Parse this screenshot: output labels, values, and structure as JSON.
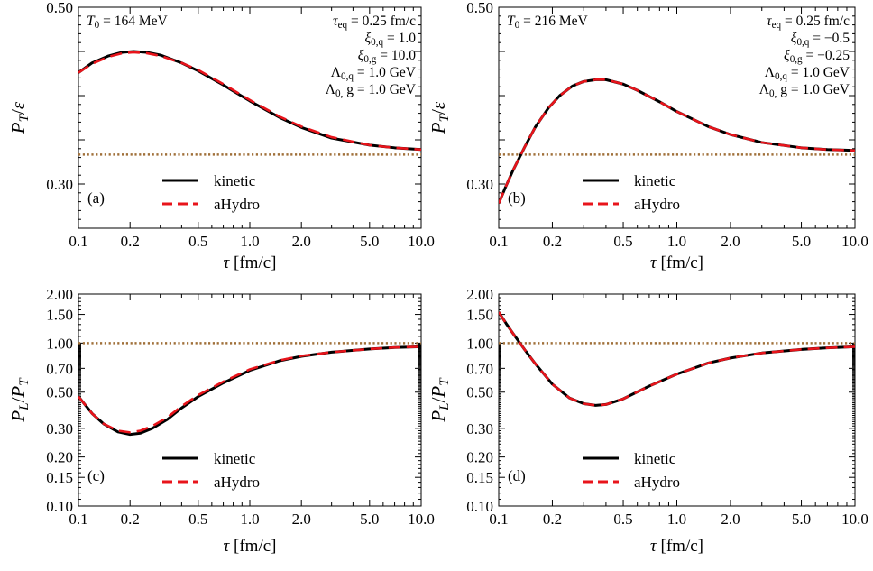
{
  "chart_data": [
    {
      "type": "line",
      "panel_label": "(a)",
      "x_scale": "log",
      "y_scale": "linear",
      "xlim": [
        0.1,
        10.0
      ],
      "ylim": [
        0.25,
        0.5
      ],
      "xticks": [
        "0.1",
        "0.2",
        "0.5",
        "1.0",
        "2.0",
        "5.0",
        "10.0"
      ],
      "yticks": [
        "0.30",
        "0.50"
      ],
      "xlabel": "τ [fm/c]",
      "ylabel": "P_T/ε",
      "info_left": "T_0 = 164 MeV",
      "info_right": [
        "τ_eq = 0.25 fm/c",
        "ξ_0,q = 1.0",
        "ξ_0,g = 10.0",
        "Λ_0,q = 1.0 GeV",
        "Λ_0, g = 1.0 GeV"
      ],
      "reference_line": {
        "y": 0.3333,
        "color": "#A0703A",
        "style": "dotted"
      },
      "series": [
        {
          "name": "kinetic",
          "color": "#000000",
          "style": "solid",
          "x": [
            0.1,
            0.12,
            0.15,
            0.18,
            0.21,
            0.25,
            0.3,
            0.4,
            0.5,
            0.7,
            1.0,
            1.5,
            2.0,
            3.0,
            5.0,
            7.0,
            10.0
          ],
          "y": [
            0.426,
            0.437,
            0.445,
            0.449,
            0.45,
            0.449,
            0.446,
            0.437,
            0.428,
            0.412,
            0.394,
            0.375,
            0.364,
            0.352,
            0.344,
            0.341,
            0.339
          ]
        },
        {
          "name": "aHydro",
          "color": "#E8141B",
          "style": "dashed",
          "x": [
            0.1,
            0.12,
            0.15,
            0.18,
            0.21,
            0.25,
            0.3,
            0.4,
            0.5,
            0.7,
            1.0,
            1.5,
            2.0,
            3.0,
            5.0,
            7.0,
            10.0
          ],
          "y": [
            0.426,
            0.436,
            0.444,
            0.448,
            0.449,
            0.448,
            0.445,
            0.437,
            0.429,
            0.413,
            0.395,
            0.376,
            0.365,
            0.353,
            0.344,
            0.341,
            0.339
          ]
        }
      ],
      "legend": {
        "placement": "bottom-center",
        "entries": [
          "kinetic",
          "aHydro"
        ]
      }
    },
    {
      "type": "line",
      "panel_label": "(b)",
      "x_scale": "log",
      "y_scale": "linear",
      "xlim": [
        0.1,
        10.0
      ],
      "ylim": [
        0.25,
        0.5
      ],
      "xticks": [
        "0.1",
        "0.2",
        "0.5",
        "1.0",
        "2.0",
        "5.0",
        "10.0"
      ],
      "yticks": [
        "0.30",
        "0.50"
      ],
      "xlabel": "τ [fm/c]",
      "ylabel": "P_T/ε",
      "info_left": "T_0 = 216 MeV",
      "info_right": [
        "τ_eq = 0.25 fm/c",
        "ξ_0,q = −0.5",
        "ξ_0,g = −0.25",
        "Λ_0,q = 1.0 GeV",
        "Λ_0, g = 1.0 GeV"
      ],
      "reference_line": {
        "y": 0.3333,
        "color": "#A0703A",
        "style": "dotted"
      },
      "series": [
        {
          "name": "kinetic",
          "color": "#000000",
          "style": "solid",
          "x": [
            0.1,
            0.11,
            0.12,
            0.14,
            0.16,
            0.19,
            0.22,
            0.26,
            0.3,
            0.35,
            0.4,
            0.5,
            0.6,
            0.8,
            1.0,
            1.5,
            2.0,
            3.0,
            5.0,
            7.0,
            10.0
          ],
          "y": [
            0.278,
            0.298,
            0.315,
            0.342,
            0.364,
            0.386,
            0.4,
            0.411,
            0.416,
            0.418,
            0.418,
            0.413,
            0.406,
            0.393,
            0.382,
            0.365,
            0.356,
            0.347,
            0.341,
            0.339,
            0.338
          ]
        },
        {
          "name": "aHydro",
          "color": "#E8141B",
          "style": "dashed",
          "x": [
            0.1,
            0.11,
            0.12,
            0.14,
            0.16,
            0.19,
            0.22,
            0.26,
            0.3,
            0.35,
            0.4,
            0.5,
            0.6,
            0.8,
            1.0,
            1.5,
            2.0,
            3.0,
            5.0,
            7.0,
            10.0
          ],
          "y": [
            0.278,
            0.298,
            0.315,
            0.342,
            0.364,
            0.386,
            0.4,
            0.411,
            0.416,
            0.418,
            0.418,
            0.413,
            0.406,
            0.393,
            0.382,
            0.365,
            0.356,
            0.347,
            0.341,
            0.339,
            0.338
          ]
        }
      ],
      "legend": {
        "placement": "bottom-center",
        "entries": [
          "kinetic",
          "aHydro"
        ]
      }
    },
    {
      "type": "line",
      "panel_label": "(c)",
      "x_scale": "log",
      "y_scale": "log",
      "xlim": [
        0.1,
        10.0
      ],
      "ylim": [
        0.1,
        2.0
      ],
      "xticks": [
        "0.1",
        "0.2",
        "0.5",
        "1.0",
        "2.0",
        "5.0",
        "10.0"
      ],
      "yticks": [
        "0.10",
        "0.15",
        "0.20",
        "0.30",
        "0.50",
        "0.70",
        "1.00",
        "1.50",
        "2.00"
      ],
      "xlabel": "τ [fm/c]",
      "ylabel": "P_L/P_T",
      "reference_line": {
        "y": 1.0,
        "color": "#A0703A",
        "style": "dotted"
      },
      "series": [
        {
          "name": "kinetic",
          "color": "#000000",
          "style": "solid",
          "x": [
            0.1,
            0.12,
            0.14,
            0.17,
            0.2,
            0.23,
            0.27,
            0.33,
            0.4,
            0.5,
            0.7,
            1.0,
            1.5,
            2.0,
            3.0,
            5.0,
            7.0,
            10.0
          ],
          "y": [
            0.47,
            0.37,
            0.32,
            0.285,
            0.275,
            0.28,
            0.3,
            0.34,
            0.4,
            0.47,
            0.57,
            0.68,
            0.78,
            0.83,
            0.88,
            0.92,
            0.94,
            0.95
          ]
        },
        {
          "name": "aHydro",
          "color": "#E8141B",
          "style": "dashed",
          "x": [
            0.1,
            0.12,
            0.14,
            0.17,
            0.2,
            0.23,
            0.27,
            0.33,
            0.4,
            0.5,
            0.7,
            1.0,
            1.5,
            2.0,
            3.0,
            5.0,
            7.0,
            10.0
          ],
          "y": [
            0.47,
            0.37,
            0.32,
            0.29,
            0.283,
            0.29,
            0.31,
            0.35,
            0.41,
            0.48,
            0.58,
            0.69,
            0.785,
            0.835,
            0.88,
            0.92,
            0.94,
            0.95
          ]
        }
      ],
      "legend": {
        "placement": "bottom-center",
        "entries": [
          "kinetic",
          "aHydro"
        ]
      }
    },
    {
      "type": "line",
      "panel_label": "(d)",
      "x_scale": "log",
      "y_scale": "log",
      "xlim": [
        0.1,
        10.0
      ],
      "ylim": [
        0.1,
        2.0
      ],
      "xticks": [
        "0.1",
        "0.2",
        "0.5",
        "1.0",
        "2.0",
        "5.0",
        "10.0"
      ],
      "yticks": [
        "0.10",
        "0.15",
        "0.20",
        "0.30",
        "0.50",
        "0.70",
        "1.00",
        "1.50",
        "2.00"
      ],
      "xlabel": "τ [fm/c]",
      "ylabel": "P_L/P_T",
      "reference_line": {
        "y": 1.0,
        "color": "#A0703A",
        "style": "dotted"
      },
      "series": [
        {
          "name": "kinetic",
          "color": "#000000",
          "style": "solid",
          "x": [
            0.1,
            0.11,
            0.12,
            0.14,
            0.16,
            0.2,
            0.25,
            0.3,
            0.35,
            0.4,
            0.5,
            0.7,
            1.0,
            1.5,
            2.0,
            3.0,
            5.0,
            7.0,
            10.0
          ],
          "y": [
            1.55,
            1.32,
            1.15,
            0.91,
            0.75,
            0.56,
            0.46,
            0.425,
            0.415,
            0.42,
            0.455,
            0.545,
            0.645,
            0.755,
            0.81,
            0.87,
            0.915,
            0.935,
            0.95
          ]
        },
        {
          "name": "aHydro",
          "color": "#E8141B",
          "style": "dashed",
          "x": [
            0.1,
            0.11,
            0.12,
            0.14,
            0.16,
            0.2,
            0.25,
            0.3,
            0.35,
            0.4,
            0.5,
            0.7,
            1.0,
            1.5,
            2.0,
            3.0,
            5.0,
            7.0,
            10.0
          ],
          "y": [
            1.55,
            1.32,
            1.15,
            0.91,
            0.75,
            0.56,
            0.46,
            0.425,
            0.415,
            0.42,
            0.455,
            0.545,
            0.645,
            0.755,
            0.81,
            0.87,
            0.915,
            0.935,
            0.95
          ]
        }
      ],
      "legend": {
        "placement": "bottom-center",
        "entries": [
          "kinetic",
          "aHydro"
        ]
      }
    }
  ]
}
